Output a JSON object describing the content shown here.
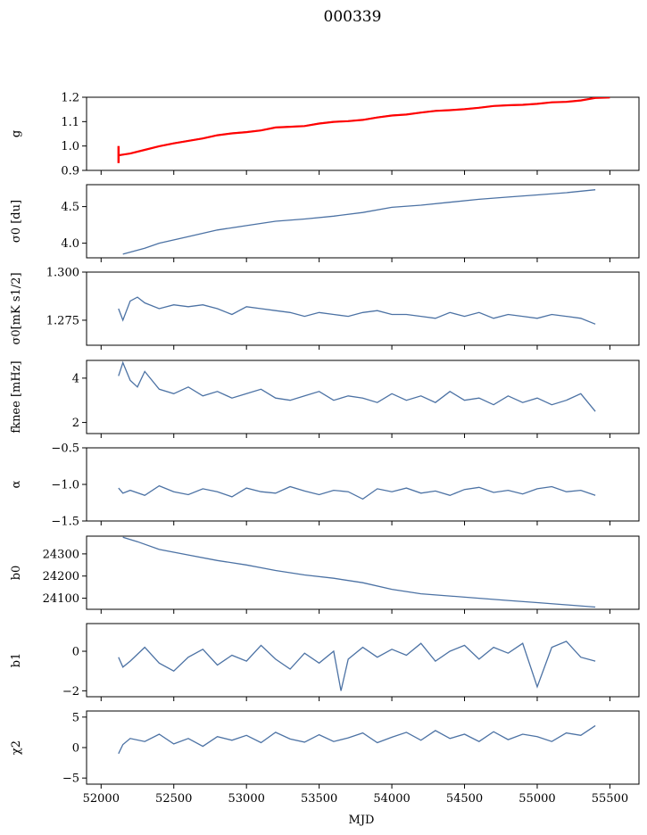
{
  "figure": {
    "title": "000339",
    "xlabel": "MJD",
    "xlim": [
      51900,
      55700
    ],
    "xticks": [
      52000,
      52500,
      53000,
      53500,
      54000,
      54500,
      55000,
      55500
    ],
    "xtick_labels": [
      "52000",
      "52500",
      "53000",
      "53500",
      "54000",
      "54500",
      "55000",
      "55500"
    ]
  },
  "colors": {
    "series": "#4c72a4",
    "fit": "#ff0000"
  },
  "chart_data": [
    {
      "type": "line",
      "name": "g",
      "ylabel": "g",
      "ylim": [
        0.9,
        1.2
      ],
      "yticks": [
        0.9,
        1.0,
        1.1,
        1.2
      ],
      "ytick_labels": [
        "0.9",
        "1.0",
        "1.1",
        "1.2"
      ],
      "x": [
        52120,
        52200,
        52300,
        52400,
        52500,
        52600,
        52700,
        52800,
        52900,
        53000,
        53100,
        53200,
        53300,
        53400,
        53500,
        53600,
        53700,
        53800,
        53900,
        54000,
        54100,
        54200,
        54300,
        54400,
        54500,
        54600,
        54700,
        54800,
        54900,
        55000,
        55100,
        55200,
        55300,
        55400
      ],
      "values": [
        0.96,
        0.97,
        0.985,
        1.0,
        1.012,
        1.022,
        1.032,
        1.045,
        1.053,
        1.058,
        1.065,
        1.077,
        1.08,
        1.083,
        1.093,
        1.1,
        1.103,
        1.108,
        1.118,
        1.126,
        1.13,
        1.138,
        1.145,
        1.148,
        1.152,
        1.158,
        1.165,
        1.168,
        1.17,
        1.174,
        1.18,
        1.182,
        1.188,
        1.198
      ],
      "overlay": {
        "name": "fit",
        "x": [
          52120,
          52200,
          52300,
          52400,
          52500,
          52600,
          52700,
          52800,
          52900,
          53000,
          53100,
          53200,
          53300,
          53400,
          53500,
          53600,
          53700,
          53800,
          53900,
          54000,
          54100,
          54200,
          54300,
          54400,
          54500,
          54600,
          54700,
          54800,
          54900,
          55000,
          55100,
          55200,
          55300,
          55400,
          55500
        ],
        "values": [
          0.962,
          0.969,
          0.984,
          0.999,
          1.011,
          1.021,
          1.031,
          1.044,
          1.052,
          1.057,
          1.064,
          1.076,
          1.079,
          1.082,
          1.092,
          1.099,
          1.102,
          1.107,
          1.117,
          1.125,
          1.129,
          1.137,
          1.144,
          1.147,
          1.151,
          1.157,
          1.164,
          1.167,
          1.169,
          1.173,
          1.179,
          1.181,
          1.187,
          1.197,
          1.199
        ],
        "error_bar": {
          "x": 52120,
          "low": 0.93,
          "high": 1.0
        }
      }
    },
    {
      "type": "line",
      "name": "sigma0_du",
      "ylabel": "σ0 [du]",
      "ylim": [
        3.8,
        4.8
      ],
      "yticks": [
        4.0,
        4.5
      ],
      "ytick_labels": [
        "4.0",
        "4.5"
      ],
      "x": [
        52150,
        52300,
        52400,
        52600,
        52800,
        53000,
        53200,
        53400,
        53600,
        53800,
        54000,
        54200,
        54400,
        54600,
        54800,
        55000,
        55200,
        55400
      ],
      "values": [
        3.85,
        3.93,
        4.0,
        4.09,
        4.18,
        4.24,
        4.3,
        4.33,
        4.37,
        4.42,
        4.49,
        4.52,
        4.56,
        4.6,
        4.63,
        4.66,
        4.69,
        4.73
      ]
    },
    {
      "type": "line",
      "name": "sigma0_mKs",
      "ylabel": "σ0[mK s1/2]",
      "ylim": [
        1.262,
        1.3
      ],
      "yticks": [
        1.275,
        1.3
      ],
      "ytick_labels": [
        "1.275",
        "1.300"
      ],
      "x": [
        52120,
        52150,
        52200,
        52250,
        52300,
        52400,
        52500,
        52600,
        52700,
        52800,
        52900,
        53000,
        53100,
        53200,
        53300,
        53400,
        53500,
        53600,
        53700,
        53800,
        53900,
        54000,
        54100,
        54200,
        54300,
        54400,
        54500,
        54600,
        54700,
        54800,
        54900,
        55000,
        55100,
        55200,
        55300,
        55400
      ],
      "values": [
        1.281,
        1.275,
        1.285,
        1.287,
        1.284,
        1.281,
        1.283,
        1.282,
        1.283,
        1.281,
        1.278,
        1.282,
        1.281,
        1.28,
        1.279,
        1.277,
        1.279,
        1.278,
        1.277,
        1.279,
        1.28,
        1.278,
        1.278,
        1.277,
        1.276,
        1.279,
        1.277,
        1.279,
        1.276,
        1.278,
        1.277,
        1.276,
        1.278,
        1.277,
        1.276,
        1.273
      ]
    },
    {
      "type": "line",
      "name": "fknee",
      "ylabel": "fknee [mHz]",
      "ylim": [
        1.5,
        4.8
      ],
      "yticks": [
        2,
        4
      ],
      "ytick_labels": [
        "2",
        "4"
      ],
      "x": [
        52120,
        52150,
        52200,
        52250,
        52300,
        52400,
        52500,
        52600,
        52700,
        52800,
        52900,
        53000,
        53100,
        53200,
        53300,
        53400,
        53500,
        53600,
        53700,
        53800,
        53900,
        54000,
        54100,
        54200,
        54300,
        54400,
        54500,
        54600,
        54700,
        54800,
        54900,
        55000,
        55100,
        55200,
        55300,
        55400
      ],
      "values": [
        4.1,
        4.7,
        3.9,
        3.6,
        4.3,
        3.5,
        3.3,
        3.6,
        3.2,
        3.4,
        3.1,
        3.3,
        3.5,
        3.1,
        3.0,
        3.2,
        3.4,
        3.0,
        3.2,
        3.1,
        2.9,
        3.3,
        3.0,
        3.2,
        2.9,
        3.4,
        3.0,
        3.1,
        2.8,
        3.2,
        2.9,
        3.1,
        2.8,
        3.0,
        3.3,
        2.5
      ]
    },
    {
      "type": "line",
      "name": "alpha",
      "ylabel": "α",
      "ylim": [
        -1.5,
        -0.5
      ],
      "yticks": [
        -1.5,
        -1.0,
        -0.5
      ],
      "ytick_labels": [
        "−1.5",
        "−1.0",
        "−0.5"
      ],
      "x": [
        52120,
        52150,
        52200,
        52300,
        52400,
        52500,
        52600,
        52700,
        52800,
        52900,
        53000,
        53100,
        53200,
        53300,
        53400,
        53500,
        53600,
        53700,
        53800,
        53900,
        54000,
        54100,
        54200,
        54300,
        54400,
        54500,
        54600,
        54700,
        54800,
        54900,
        55000,
        55100,
        55200,
        55300,
        55400
      ],
      "values": [
        -1.05,
        -1.12,
        -1.08,
        -1.15,
        -1.02,
        -1.1,
        -1.14,
        -1.06,
        -1.1,
        -1.17,
        -1.05,
        -1.1,
        -1.12,
        -1.03,
        -1.09,
        -1.14,
        -1.08,
        -1.1,
        -1.2,
        -1.06,
        -1.1,
        -1.05,
        -1.12,
        -1.09,
        -1.15,
        -1.07,
        -1.04,
        -1.11,
        -1.08,
        -1.13,
        -1.06,
        -1.03,
        -1.1,
        -1.08,
        -1.15
      ]
    },
    {
      "type": "line",
      "name": "b0",
      "ylabel": "b0",
      "ylim": [
        24050,
        24380
      ],
      "yticks": [
        24100,
        24200,
        24300
      ],
      "ytick_labels": [
        "24100",
        "24200",
        "24300"
      ],
      "x": [
        52150,
        52250,
        52400,
        52600,
        52800,
        53000,
        53200,
        53400,
        53600,
        53800,
        54000,
        54200,
        54400,
        54600,
        54800,
        55000,
        55200,
        55400
      ],
      "values": [
        24375,
        24355,
        24320,
        24295,
        24270,
        24250,
        24225,
        24205,
        24190,
        24170,
        24140,
        24120,
        24110,
        24100,
        24090,
        24080,
        24070,
        24060
      ]
    },
    {
      "type": "line",
      "name": "b1",
      "ylabel": "b1",
      "ylim": [
        -2.3,
        1.4
      ],
      "yticks": [
        -2,
        0
      ],
      "ytick_labels": [
        "−2",
        "0"
      ],
      "x": [
        52120,
        52150,
        52200,
        52300,
        52400,
        52500,
        52600,
        52700,
        52800,
        52900,
        53000,
        53100,
        53200,
        53300,
        53400,
        53500,
        53600,
        53650,
        53700,
        53800,
        53900,
        54000,
        54100,
        54200,
        54300,
        54400,
        54500,
        54600,
        54700,
        54800,
        54900,
        55000,
        55100,
        55200,
        55300,
        55400
      ],
      "values": [
        -0.3,
        -0.8,
        -0.5,
        0.2,
        -0.6,
        -1.0,
        -0.3,
        0.1,
        -0.7,
        -0.2,
        -0.5,
        0.3,
        -0.4,
        -0.9,
        -0.1,
        -0.6,
        0.0,
        -2.0,
        -0.4,
        0.2,
        -0.3,
        0.1,
        -0.2,
        0.4,
        -0.5,
        0.0,
        0.3,
        -0.4,
        0.2,
        -0.1,
        0.4,
        -1.8,
        0.2,
        0.5,
        -0.3,
        -0.5
      ]
    },
    {
      "type": "line",
      "name": "chi2",
      "ylabel": "χ2",
      "ylim": [
        -6,
        6
      ],
      "yticks": [
        -5,
        0,
        5
      ],
      "ytick_labels": [
        "−5",
        "0",
        "5"
      ],
      "x": [
        52120,
        52150,
        52200,
        52300,
        52400,
        52500,
        52600,
        52700,
        52800,
        52900,
        53000,
        53100,
        53200,
        53300,
        53400,
        53500,
        53600,
        53700,
        53800,
        53900,
        54000,
        54100,
        54200,
        54300,
        54400,
        54500,
        54600,
        54700,
        54800,
        54900,
        55000,
        55100,
        55200,
        55300,
        55400
      ],
      "values": [
        -1.0,
        0.5,
        1.5,
        1.0,
        2.2,
        0.6,
        1.5,
        0.2,
        1.8,
        1.2,
        2.0,
        0.8,
        2.5,
        1.4,
        0.9,
        2.1,
        1.0,
        1.6,
        2.4,
        0.8,
        1.7,
        2.5,
        1.2,
        2.8,
        1.5,
        2.2,
        1.0,
        2.6,
        1.3,
        2.2,
        1.8,
        1.0,
        2.4,
        2.0,
        3.6
      ]
    }
  ]
}
